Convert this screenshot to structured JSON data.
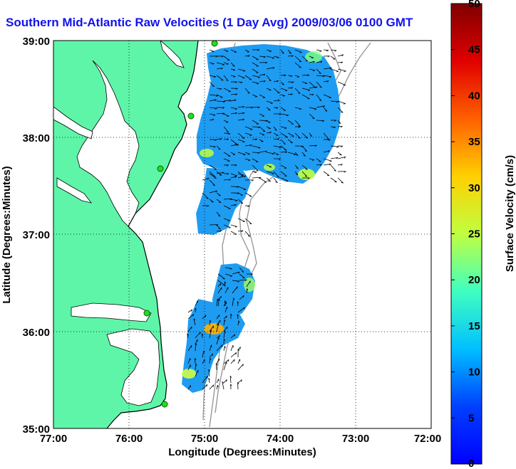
{
  "title": "Southern Mid-Atlantic Raw Velocities (1 Day Avg) 2009/03/06 0100 GMT",
  "map": {
    "xlabel": "Longitude (Degrees:Minutes)",
    "ylabel": "Latitude (Degrees:Minutes)",
    "x_ticks": [
      "77:00",
      "76:00",
      "75:00",
      "74:00",
      "73:00",
      "72:00"
    ],
    "y_ticks": [
      "39:00",
      "38:00",
      "37:00",
      "36:00",
      "35:00"
    ],
    "land_color": "#5ef5a8",
    "water_color": "#ffffff",
    "coast_color": "#000000",
    "bathymetry_color": "#999999",
    "station_color": "#22dd22",
    "grid": "dotted"
  },
  "colorbar": {
    "label": "Surface Velocity (cm/s)",
    "min": 0,
    "max": 50,
    "ticks": [
      "50",
      "45",
      "40",
      "35",
      "30",
      "25",
      "20",
      "15",
      "10",
      "5",
      "0"
    ],
    "colormap": "jet"
  }
}
